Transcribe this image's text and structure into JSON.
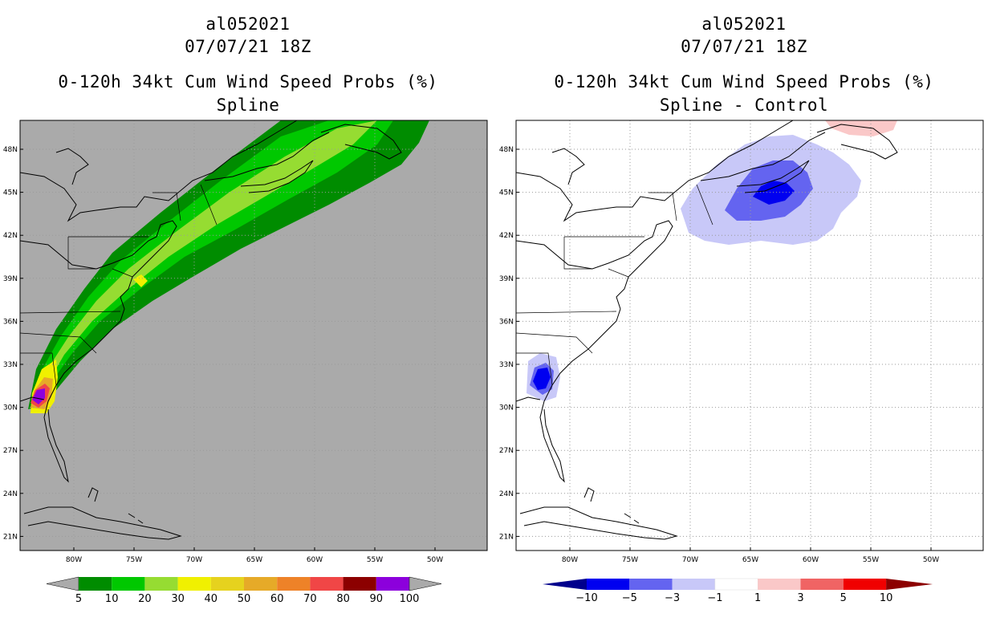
{
  "panels": [
    {
      "id": "left",
      "storm_id": "al052021",
      "datetime": "07/07/21 18Z",
      "product": "0-120h 34kt Cum Wind Speed Probs (%)",
      "subtitle": "Spline",
      "background_color": "#aaaaaa",
      "lon_labels": [
        "80W",
        "75W",
        "70W",
        "65W",
        "60W",
        "55W",
        "50W"
      ],
      "lat_labels": [
        "48N",
        "45N",
        "42N",
        "39N",
        "36N",
        "33N",
        "30N",
        "27N",
        "24N",
        "21N"
      ],
      "colorbar": {
        "labels": [
          "5",
          "10",
          "20",
          "30",
          "40",
          "50",
          "60",
          "70",
          "80",
          "90",
          "100"
        ],
        "colors": [
          "#008c00",
          "#00c800",
          "#96dc32",
          "#f0f000",
          "#e6d21e",
          "#e6aa28",
          "#ee8228",
          "#f04646",
          "#8c0000",
          "#8c00dc"
        ],
        "end_color": "#aaaaaa"
      }
    },
    {
      "id": "right",
      "storm_id": "al052021",
      "datetime": "07/07/21 18Z",
      "product": "0-120h 34kt Cum Wind Speed Probs (%)",
      "subtitle": "Spline - Control",
      "background_color": "#ffffff",
      "lon_labels": [
        "80W",
        "75W",
        "70W",
        "65W",
        "60W",
        "55W",
        "50W"
      ],
      "lat_labels": [
        "48N",
        "45N",
        "42N",
        "39N",
        "36N",
        "33N",
        "30N",
        "27N",
        "24N",
        "21N"
      ],
      "colorbar": {
        "labels": [
          "-10",
          "-5",
          "-3",
          "-1",
          "1",
          "3",
          "5",
          "10"
        ],
        "colors": [
          "#0000f0",
          "#6464f0",
          "#c8c8f8",
          "#ffffff",
          "#fac8c8",
          "#f06464",
          "#f00000"
        ],
        "low_end_color": "#00008c",
        "high_end_color": "#8c0000"
      }
    }
  ],
  "shading": {
    "left_track": [
      "#008c00",
      "#00c800",
      "#96dc32"
    ],
    "left_core": [
      "#f0f000",
      "#e6aa28",
      "#f04646",
      "#8c00dc"
    ],
    "right_negative": [
      "#c8c8f8",
      "#6464f0",
      "#0000f0"
    ],
    "right_positive": [
      "#fac8c8"
    ]
  }
}
